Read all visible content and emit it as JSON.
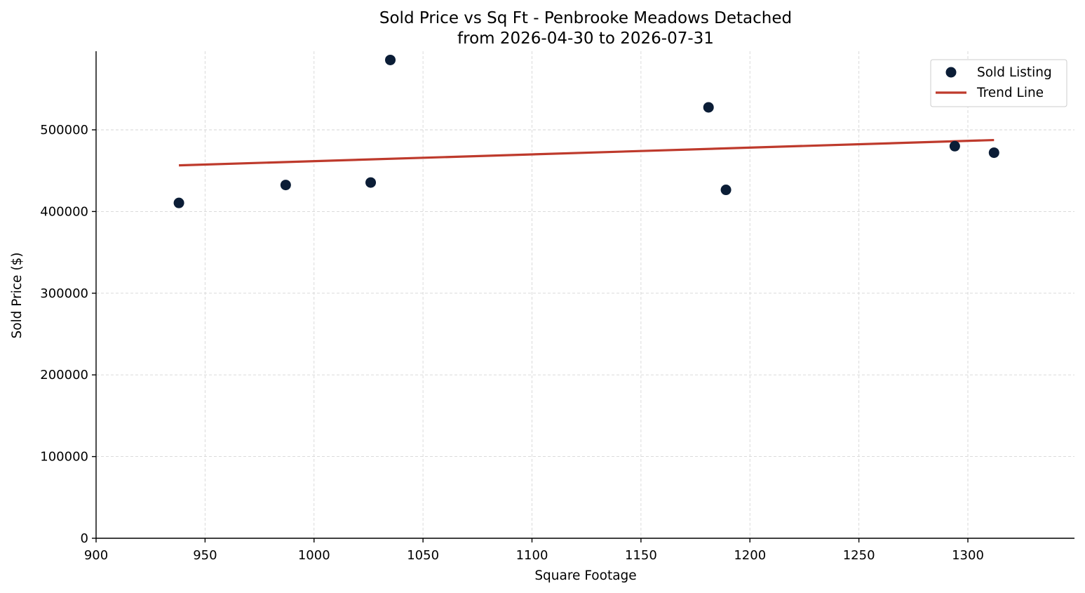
{
  "chart_data": {
    "type": "scatter",
    "title": "Sold Price vs Sq Ft - Penbrooke Meadows Detached",
    "subtitle": "from 2026-04-30 to 2026-07-31",
    "xlabel": "Square Footage",
    "ylabel": "Sold Price ($)",
    "xlim": [
      900,
      1350
    ],
    "ylim": [
      0,
      595000
    ],
    "xticks": [
      900,
      950,
      1000,
      1050,
      1100,
      1150,
      1200,
      1250,
      1300
    ],
    "yticks": [
      0,
      100000,
      200000,
      300000,
      400000,
      500000
    ],
    "grid": true,
    "legend_position": "top-right",
    "series": [
      {
        "name": "Sold Listing",
        "kind": "scatter",
        "color": "#0b1d36",
        "points": [
          {
            "x": 938,
            "y": 410500
          },
          {
            "x": 987,
            "y": 432500
          },
          {
            "x": 1026,
            "y": 435500
          },
          {
            "x": 1035,
            "y": 585500
          },
          {
            "x": 1181,
            "y": 527500
          },
          {
            "x": 1189,
            "y": 426500
          },
          {
            "x": 1294,
            "y": 480000
          },
          {
            "x": 1312,
            "y": 472000
          }
        ]
      },
      {
        "name": "Trend Line",
        "kind": "line",
        "color": "#be3a2c",
        "points": [
          {
            "x": 938,
            "y": 456500
          },
          {
            "x": 1312,
            "y": 487500
          }
        ]
      }
    ]
  }
}
